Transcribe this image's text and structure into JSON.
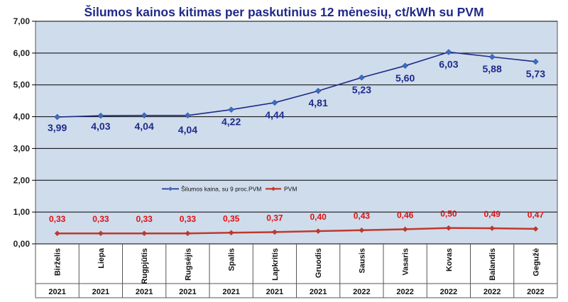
{
  "chart_data": {
    "type": "line",
    "title": "Šilumos kainos kitimas per paskutinius 12 mėnesių, ct/kWh su PVM",
    "categories": [
      "Birželis",
      "Liepa",
      "Rugpjūtis",
      "Rugsėjis",
      "Spalis",
      "Lapkritis",
      "Gruodis",
      "Sausis",
      "Vasaris",
      "Kovas",
      "Balandis",
      "Gegužė"
    ],
    "years": [
      "2021",
      "2021",
      "2021",
      "2021",
      "2021",
      "2021",
      "2021",
      "2022",
      "2022",
      "2022",
      "2022",
      "2022"
    ],
    "series": [
      {
        "name": "Šilumos kaina, su 9 proc.PVM",
        "color": "#1f2a8a",
        "values": [
          3.99,
          4.03,
          4.04,
          4.04,
          4.22,
          4.44,
          4.81,
          5.23,
          5.6,
          6.03,
          5.88,
          5.73
        ],
        "labels": [
          "3,99",
          "4,03",
          "4,04",
          "4,04",
          "4,22",
          "4,44",
          "4,81",
          "5,23",
          "5,60",
          "6,03",
          "5,88",
          "5,73"
        ]
      },
      {
        "name": "PVM",
        "color": "#c0392b",
        "label_color": "#e01010",
        "values": [
          0.33,
          0.33,
          0.33,
          0.33,
          0.35,
          0.37,
          0.4,
          0.43,
          0.46,
          0.5,
          0.49,
          0.47
        ],
        "labels": [
          "0,33",
          "0,33",
          "0,33",
          "0,33",
          "0,35",
          "0,37",
          "0,40",
          "0,43",
          "0,46",
          "0,50",
          "0,49",
          "0,47"
        ]
      }
    ],
    "ylim": [
      0,
      7
    ],
    "yticks": [
      0,
      1,
      2,
      3,
      4,
      5,
      6,
      7
    ],
    "ytick_labels": [
      "0,00",
      "1,00",
      "2,00",
      "3,00",
      "4,00",
      "5,00",
      "6,00",
      "7,00"
    ],
    "grid": true,
    "plot_background": "#cfdcec",
    "legend_position": "inside-middle-left"
  }
}
